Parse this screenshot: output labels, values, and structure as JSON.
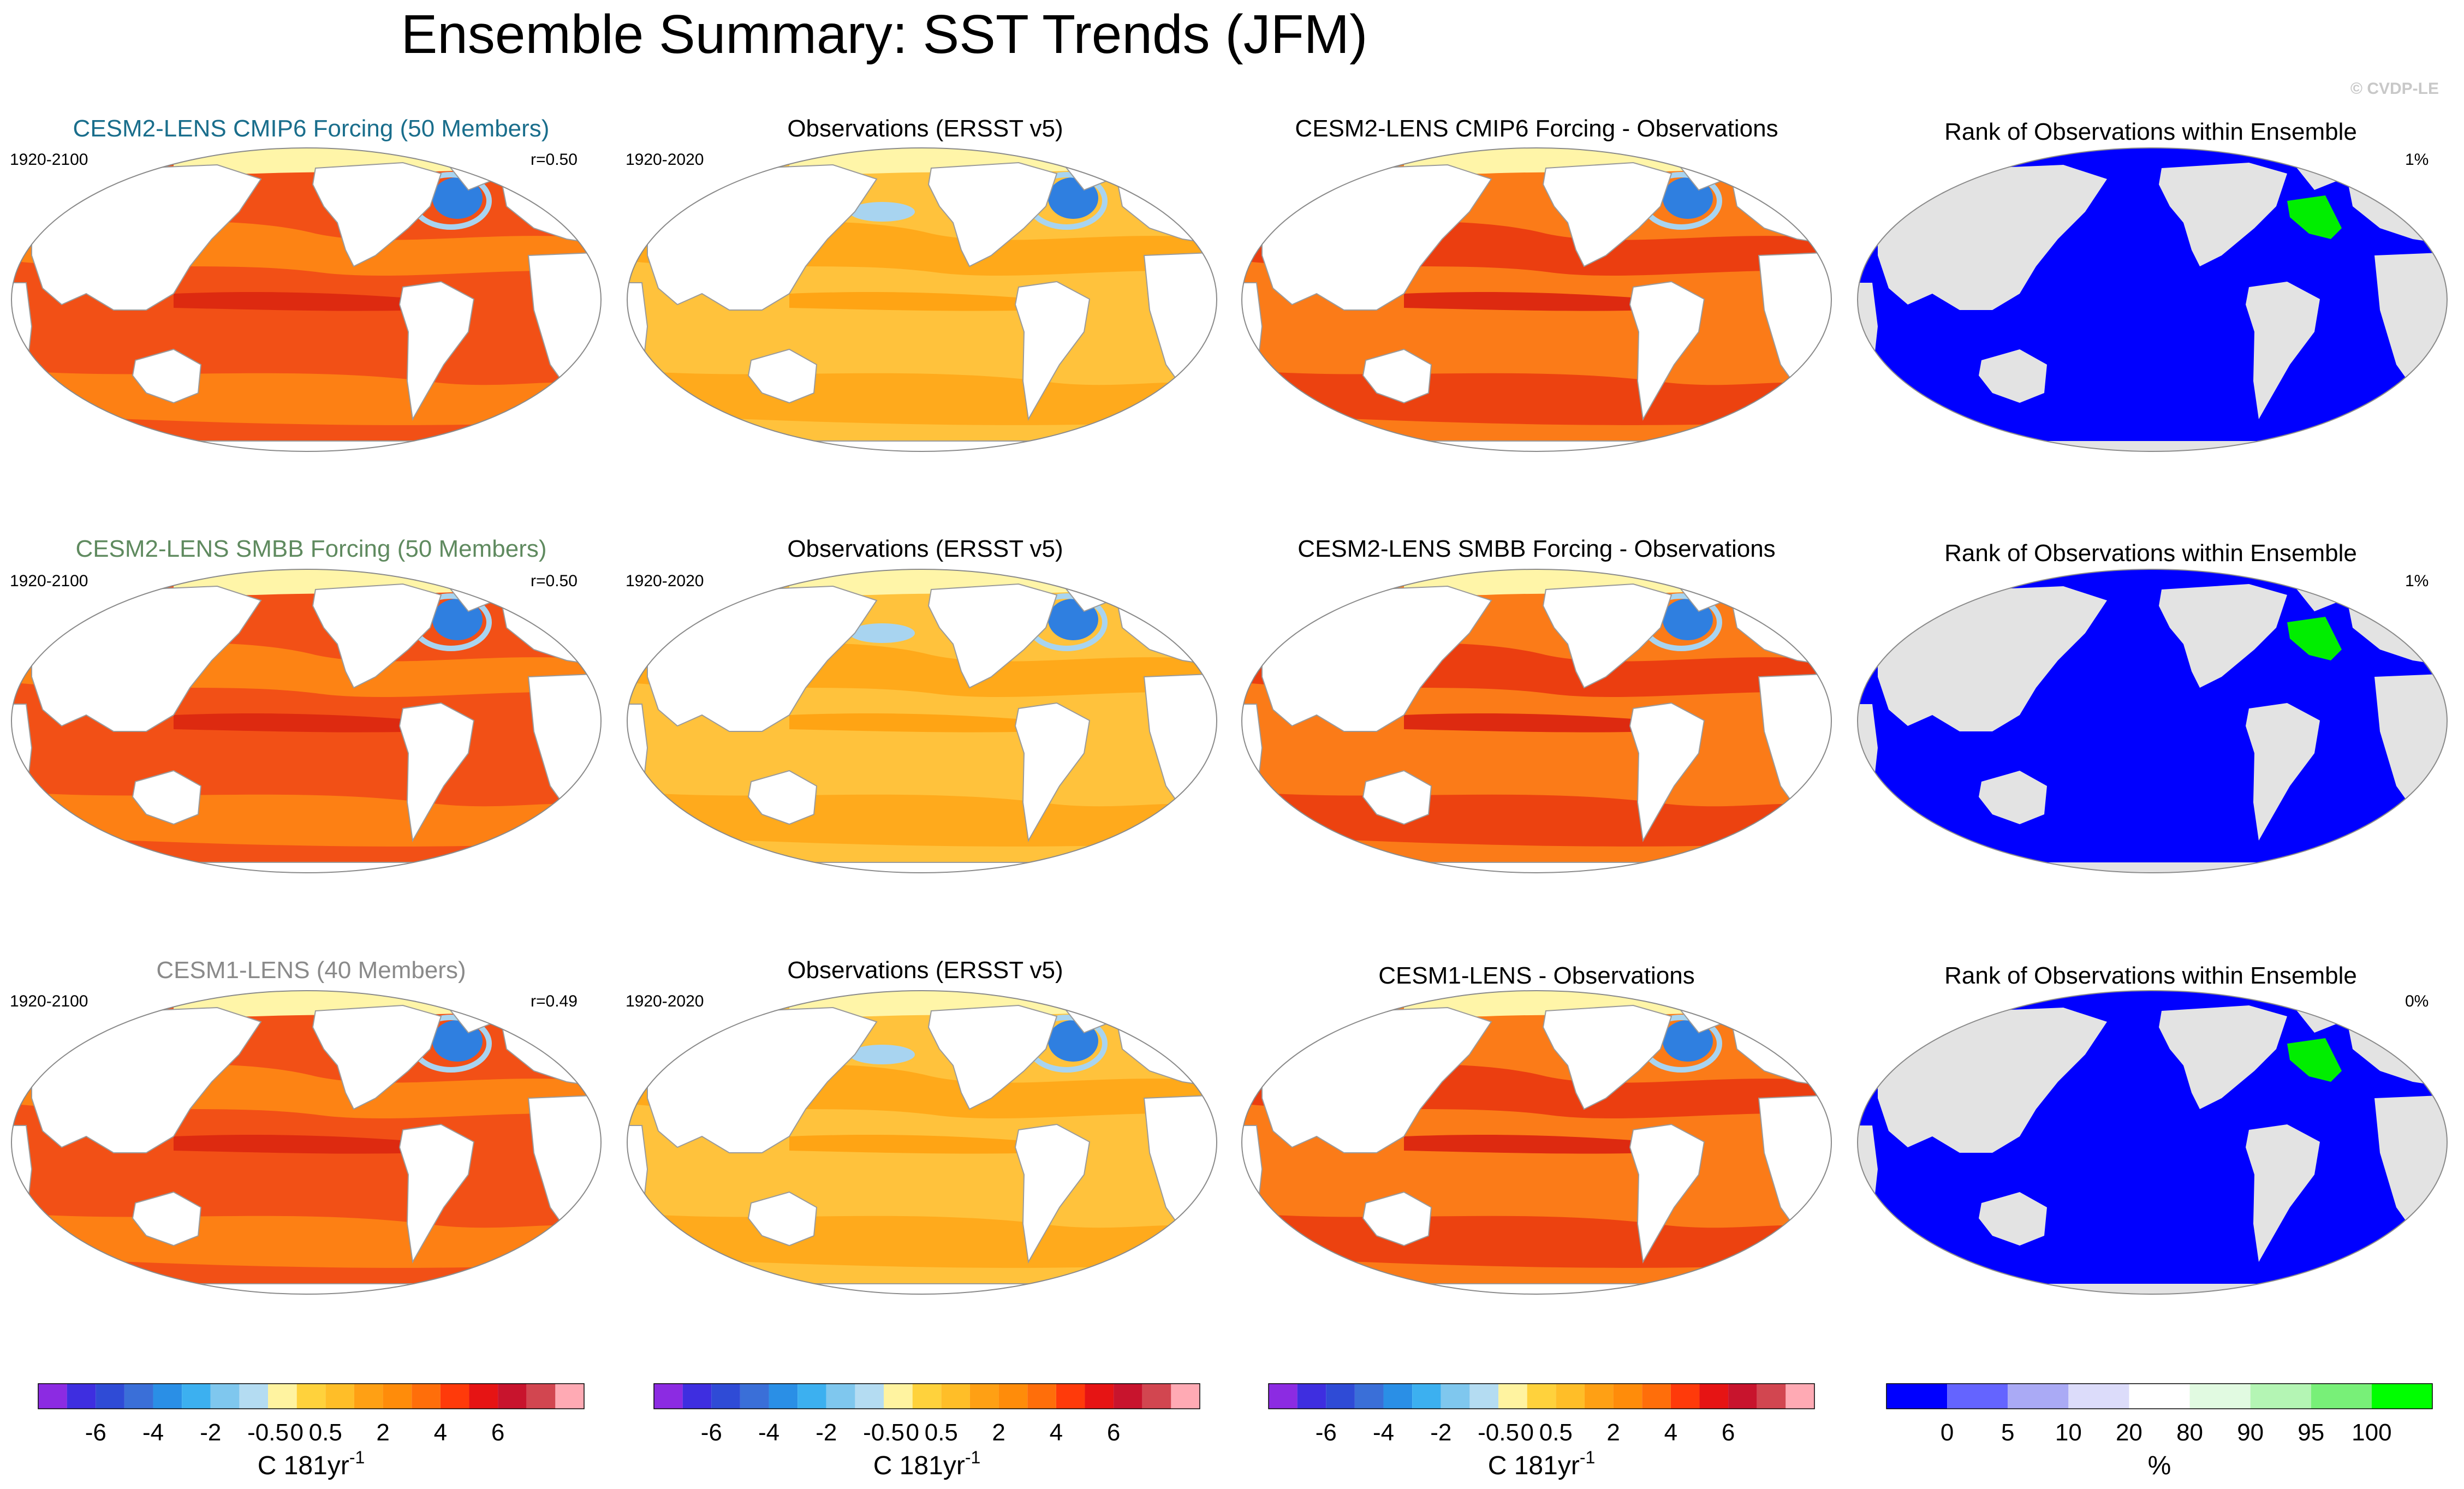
{
  "title": "Ensemble Summary: SST Trends (JFM)",
  "watermark": "© CVDP-LE",
  "rows": [
    {
      "model": {
        "title": "CESM2-LENS CMIP6 Forcing (50 Members)",
        "title_color": "#1a6e8c",
        "years": "1920-2100",
        "r": "r=0.50"
      },
      "obs": {
        "title": "Observations (ERSST v5)",
        "years": "1920-2020"
      },
      "diff": {
        "title": "CESM2-LENS CMIP6 Forcing - Observations"
      },
      "rank": {
        "title": "Rank of Observations within Ensemble",
        "pct": "1%"
      }
    },
    {
      "model": {
        "title": "CESM2-LENS SMBB Forcing (50 Members)",
        "title_color": "#5f8a5f",
        "years": "1920-2100",
        "r": "r=0.50"
      },
      "obs": {
        "title": "Observations (ERSST v5)",
        "years": "1920-2020"
      },
      "diff": {
        "title": "CESM2-LENS SMBB Forcing - Observations"
      },
      "rank": {
        "title": "Rank of Observations within Ensemble",
        "pct": "1%"
      }
    },
    {
      "model": {
        "title": "CESM1-LENS (40 Members)",
        "title_color": "#8a8a8a",
        "years": "1920-2100",
        "r": "r=0.49"
      },
      "obs": {
        "title": "Observations (ERSST v5)",
        "years": "1920-2020"
      },
      "diff": {
        "title": "CESM1-LENS - Observations"
      },
      "rank": {
        "title": "Rank of Observations within Ensemble",
        "pct": "0%"
      }
    }
  ],
  "colorbars": {
    "sst": {
      "colors": [
        "#8c2be2",
        "#3e2ee0",
        "#2f4bd6",
        "#3a6fd8",
        "#2a8fe6",
        "#3cb0f0",
        "#7fc7ee",
        "#b4dcf2",
        "#fff3a0",
        "#ffd23c",
        "#ffbe28",
        "#ffa014",
        "#ff8c0a",
        "#ff6e0a",
        "#ff3a0a",
        "#e61414",
        "#c8142d",
        "#d24650",
        "#ffaab4"
      ],
      "ticks": [
        "-6",
        "-4",
        "-2",
        "-0.5",
        "0",
        "0.5",
        "2",
        "4",
        "6"
      ],
      "tick_boundaries": [
        2,
        4,
        6,
        8,
        9,
        10,
        12,
        14,
        16
      ],
      "unit": "C 181yr",
      "unit_exponent": "-1"
    },
    "rank": {
      "colors": [
        "#0000ff",
        "#6464ff",
        "#aaaaf5",
        "#dcdcfa",
        "#ffffff",
        "#e1fae1",
        "#b4f5b4",
        "#78f078",
        "#00ff00"
      ],
      "ticks": [
        "0",
        "5",
        "10",
        "20",
        "80",
        "90",
        "95",
        "100"
      ],
      "tick_boundaries": [
        1,
        2,
        3,
        4,
        5,
        6,
        7,
        8
      ],
      "unit": "%"
    }
  },
  "map_colors": {
    "land": "#ffffff",
    "coast": "#9a9a9a",
    "arctic": "#fff5a8",
    "model_ocean": "#f25016",
    "model_band": "#ff8c14",
    "model_hot": "#dd2a10",
    "obs_ocean": "#ffc23c",
    "obs_band": "#ffa414",
    "diff_ocean": "#fb7b18",
    "diff_band": "#e8340f",
    "cool_blue": "#2f7fe0",
    "light_blue": "#a8d4f0",
    "rank_ocean": "#0000ff",
    "rank_land": "#e3e3e3",
    "rank_green": "#00ee00"
  }
}
